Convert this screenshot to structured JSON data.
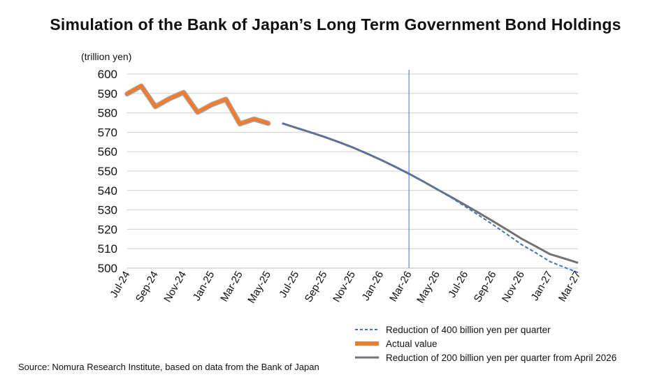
{
  "chart_data": {
    "type": "line",
    "title": "Simulation of the Bank of Japan’s Long Term Government Bond Holdings",
    "ylabel": "(trillion yen)",
    "ylim": [
      500,
      600
    ],
    "yticks": [
      500,
      510,
      520,
      530,
      540,
      550,
      560,
      570,
      580,
      590,
      600
    ],
    "x_labels": [
      "Jul-24",
      "Sep-24",
      "Nov-24",
      "Jan-25",
      "Mar-25",
      "May-25",
      "Jul-25",
      "Sep-25",
      "Nov-25",
      "Jan-26",
      "Mar-26",
      "May-26",
      "Jul-26",
      "Sep-26",
      "Nov-26",
      "Jan-27",
      "Mar-27"
    ],
    "x": [
      "Jul-24",
      "Aug-24",
      "Sep-24",
      "Oct-24",
      "Nov-24",
      "Dec-24",
      "Jan-25",
      "Feb-25",
      "Mar-25",
      "Apr-25",
      "May-25",
      "Jun-25",
      "Jul-25",
      "Aug-25",
      "Sep-25",
      "Oct-25",
      "Nov-25",
      "Dec-25",
      "Jan-26",
      "Feb-26",
      "Mar-26",
      "Apr-26",
      "May-26",
      "Jun-26",
      "Jul-26",
      "Aug-26",
      "Sep-26",
      "Oct-26",
      "Nov-26",
      "Dec-26",
      "Jan-27",
      "Feb-27",
      "Mar-27"
    ],
    "vertical_marker": "Mar-26",
    "grid": "horizontal",
    "legend_position": "bottom-right",
    "series": [
      {
        "name": "Reduction of 400 billion yen per quarter",
        "color": "#4472c4",
        "style": "dashed",
        "values": [
          null,
          null,
          null,
          null,
          null,
          null,
          null,
          null,
          null,
          null,
          null,
          574.6,
          572.3,
          570.0,
          567.6,
          565.0,
          562.2,
          559.1,
          555.8,
          552.3,
          548.6,
          544.7,
          540.6,
          536.3,
          531.7,
          527.0,
          522.2,
          517.2,
          512.1,
          507.9,
          503.4,
          500.5,
          497.7
        ]
      },
      {
        "name": "Actual value",
        "color": "#ed7d31",
        "style": "solid-thick",
        "values": [
          589.8,
          593.8,
          583.2,
          587.3,
          590.5,
          580.3,
          584.2,
          587.0,
          574.3,
          576.8,
          574.6,
          null,
          null,
          null,
          null,
          null,
          null,
          null,
          null,
          null,
          null,
          null,
          null,
          null,
          null,
          null,
          null,
          null,
          null,
          null,
          null,
          null,
          null
        ]
      },
      {
        "name": "Reduction of 200 billion yen per quarter from April 2026",
        "color": "#767171",
        "style": "solid",
        "values": [
          null,
          null,
          null,
          null,
          null,
          null,
          null,
          null,
          null,
          null,
          null,
          574.6,
          572.3,
          570.0,
          567.6,
          565.0,
          562.2,
          559.1,
          555.8,
          552.3,
          548.6,
          544.7,
          540.6,
          536.6,
          532.5,
          528.3,
          524.0,
          519.6,
          515.1,
          511.2,
          507.2,
          505.0,
          502.7
        ]
      }
    ]
  },
  "source_note": "Source: Nomura Research Institute, based on data from the Bank of Japan"
}
